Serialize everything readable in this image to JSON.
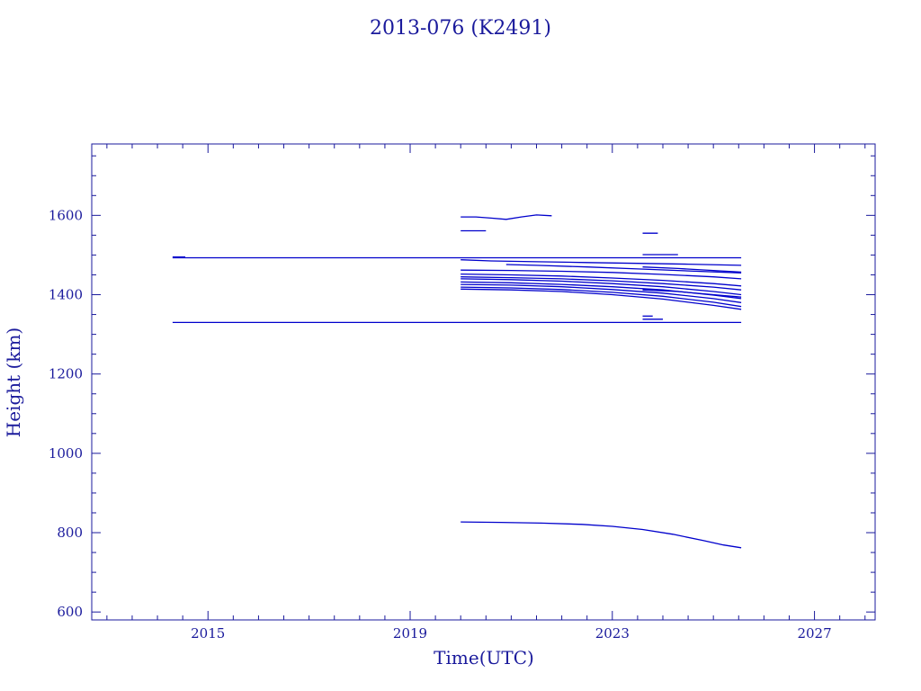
{
  "chart_data": {
    "type": "line",
    "title": "2013-076 (K2491)",
    "xlabel": "Time(UTC)",
    "ylabel": "Height (km)",
    "xlim": [
      2012.7,
      2028.2
    ],
    "ylim": [
      580,
      1780
    ],
    "xticks": [
      2015,
      2019,
      2023,
      2027
    ],
    "yticks": [
      600,
      800,
      1000,
      1200,
      1400,
      1600
    ],
    "grid": false,
    "color": "#0000cc",
    "series": [
      {
        "x": [
          2014.3,
          2025.55
        ],
        "y": [
          1493,
          1493
        ]
      },
      {
        "x": [
          2014.3,
          2025.55
        ],
        "y": [
          1330,
          1330
        ]
      },
      {
        "x": [
          2014.3,
          2014.55
        ],
        "y": [
          1495,
          1495
        ]
      },
      {
        "x": [
          2020.0,
          2020.3,
          2020.6,
          2020.9,
          2021.2,
          2021.5,
          2021.8
        ],
        "y": [
          1596,
          1596,
          1593,
          1590,
          1596,
          1601,
          1599
        ]
      },
      {
        "x": [
          2020.0,
          2020.5
        ],
        "y": [
          1561,
          1561
        ]
      },
      {
        "x": [
          2020.0,
          2020.6,
          2021.5,
          2022.5,
          2023.5,
          2024.5,
          2025.55
        ],
        "y": [
          1488,
          1485,
          1483,
          1481,
          1479,
          1477,
          1474
        ]
      },
      {
        "x": [
          2020.9,
          2021.5,
          2022.5,
          2023.5,
          2024.5,
          2025.55
        ],
        "y": [
          1476,
          1474,
          1470,
          1465,
          1460,
          1455
        ]
      },
      {
        "x": [
          2020.0,
          2021.0,
          2022.0,
          2023.0,
          2024.0,
          2025.0,
          2025.55
        ],
        "y": [
          1462,
          1461,
          1459,
          1456,
          1451,
          1445,
          1440
        ]
      },
      {
        "x": [
          2020.0,
          2021.0,
          2022.0,
          2023.0,
          2024.0,
          2025.0,
          2025.55
        ],
        "y": [
          1452,
          1450,
          1447,
          1442,
          1436,
          1428,
          1422
        ]
      },
      {
        "x": [
          2020.0,
          2021.0,
          2022.0,
          2023.0,
          2024.0,
          2025.0,
          2025.55
        ],
        "y": [
          1445,
          1443,
          1440,
          1435,
          1428,
          1419,
          1412
        ]
      },
      {
        "x": [
          2020.0,
          2021.0,
          2022.0,
          2023.0,
          2024.0,
          2025.0,
          2025.55
        ],
        "y": [
          1440,
          1438,
          1434,
          1428,
          1420,
          1408,
          1400
        ]
      },
      {
        "x": [
          2020.0,
          2021.0,
          2022.0,
          2023.0,
          2024.0,
          2025.0,
          2025.55
        ],
        "y": [
          1432,
          1430,
          1426,
          1420,
          1412,
          1399,
          1390
        ]
      },
      {
        "x": [
          2020.0,
          2021.0,
          2022.0,
          2023.0,
          2024.0,
          2025.0,
          2025.55
        ],
        "y": [
          1426,
          1424,
          1420,
          1413,
          1404,
          1390,
          1380
        ]
      },
      {
        "x": [
          2020.0,
          2021.0,
          2022.0,
          2023.0,
          2024.0,
          2025.0,
          2025.55
        ],
        "y": [
          1419,
          1417,
          1413,
          1406,
          1396,
          1381,
          1370
        ]
      },
      {
        "x": [
          2020.0,
          2021.0,
          2022.0,
          2023.0,
          2024.0,
          2025.0,
          2025.55
        ],
        "y": [
          1414,
          1412,
          1408,
          1400,
          1389,
          1373,
          1363
        ]
      },
      {
        "x": [
          2023.6,
          2024.3,
          2025.0,
          2025.55
        ],
        "y": [
          1470,
          1466,
          1461,
          1457
        ]
      },
      {
        "x": [
          2023.6,
          2024.3,
          2025.0,
          2025.55
        ],
        "y": [
          1412,
          1408,
          1400,
          1394
        ]
      },
      {
        "x": [
          2023.6,
          2023.9
        ],
        "y": [
          1555,
          1555
        ]
      },
      {
        "x": [
          2023.6,
          2024.3
        ],
        "y": [
          1501,
          1501
        ]
      },
      {
        "x": [
          2023.6,
          2024.0
        ],
        "y": [
          1338,
          1338
        ]
      },
      {
        "x": [
          2023.6,
          2023.8
        ],
        "y": [
          1346,
          1346
        ]
      },
      {
        "x": [
          2020.0,
          2020.8,
          2021.6,
          2022.4,
          2023.0,
          2023.6,
          2024.2,
          2024.8,
          2025.2,
          2025.55
        ],
        "y": [
          827,
          826,
          824,
          821,
          816,
          808,
          796,
          780,
          769,
          762
        ]
      }
    ]
  }
}
